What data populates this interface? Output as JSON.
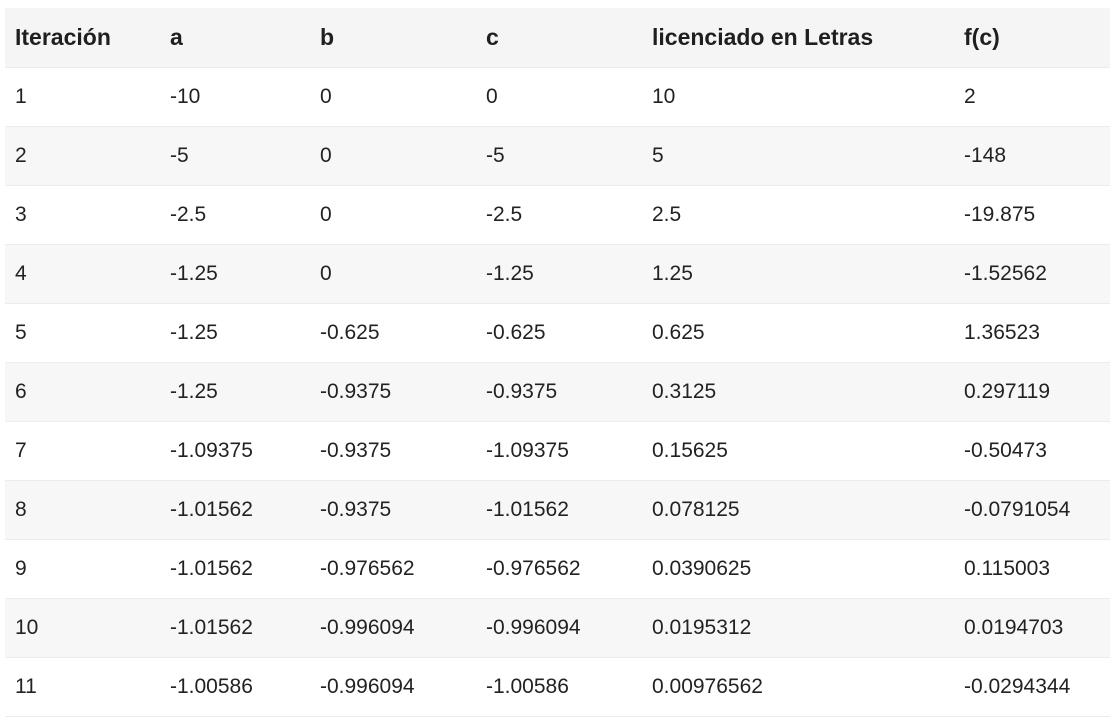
{
  "table": {
    "headers": [
      "Iteración",
      "a",
      "b",
      "c",
      "licenciado en Letras",
      "f(c)"
    ],
    "rows": [
      [
        "1",
        "-10",
        "0",
        "0",
        "10",
        "2"
      ],
      [
        "2",
        "-5",
        "0",
        "-5",
        "5",
        "-148"
      ],
      [
        "3",
        "-2.5",
        "0",
        "-2.5",
        "2.5",
        "-19.875"
      ],
      [
        "4",
        "-1.25",
        "0",
        "-1.25",
        "1.25",
        "-1.52562"
      ],
      [
        "5",
        "-1.25",
        "-0.625",
        "-0.625",
        "0.625",
        "1.36523"
      ],
      [
        "6",
        "-1.25",
        "-0.9375",
        "-0.9375",
        "0.3125",
        "0.297119"
      ],
      [
        "7",
        "-1.09375",
        "-0.9375",
        "-1.09375",
        "0.15625",
        "-0.50473"
      ],
      [
        "8",
        "-1.01562",
        "-0.9375",
        "-1.01562",
        "0.078125",
        "-0.0791054"
      ],
      [
        "9",
        "-1.01562",
        "-0.976562",
        "-0.976562",
        "0.0390625",
        "0.115003"
      ],
      [
        "10",
        "-1.01562",
        "-0.996094",
        "-0.996094",
        "0.0195312",
        "0.0194703"
      ],
      [
        "11",
        "-1.00586",
        "-0.996094",
        "-1.00586",
        "0.00976562",
        "-0.0294344"
      ]
    ]
  }
}
